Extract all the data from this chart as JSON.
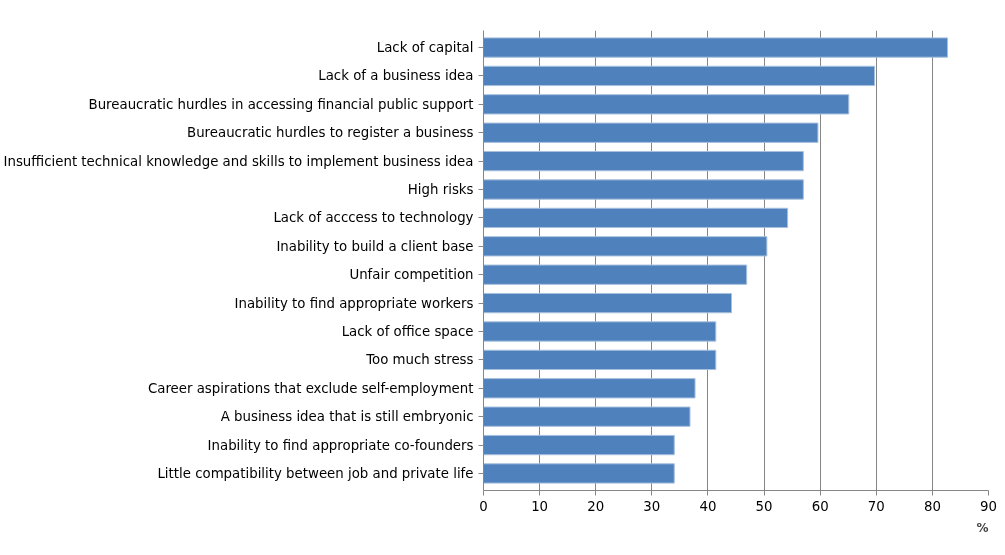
{
  "chart_data": {
    "type": "bar",
    "orientation": "horizontal",
    "xlabel": "%",
    "categories": [
      "Lack of capital",
      "Lack of a business idea",
      "Bureaucratic hurdles in accessing financial public support",
      "Bureaucratic hurdles to register a business",
      "Insufficient technical knowledge and skills to implement business idea",
      "High risks",
      "Lack of acccess to technology",
      "Inability to build a client base",
      "Unfair competition",
      "Inability to find appropriate workers",
      "Lack of office space",
      "Too much stress",
      "Career aspirations that exclude self-employment",
      "A business idea that is still embryonic",
      "Inability to find appropriate co-founders",
      "Little compatibility between job and private life"
    ],
    "values": [
      82.7,
      69.7,
      65.1,
      59.6,
      57.0,
      57.0,
      54.2,
      50.5,
      46.9,
      44.2,
      41.4,
      41.4,
      37.7,
      36.8,
      34.0,
      34.0
    ],
    "color": "#4f81bd",
    "xlim": [
      0,
      90
    ],
    "xticks": [
      0,
      10,
      20,
      30,
      40,
      50,
      60,
      70,
      80,
      90
    ],
    "grid": "x",
    "legend": false
  }
}
